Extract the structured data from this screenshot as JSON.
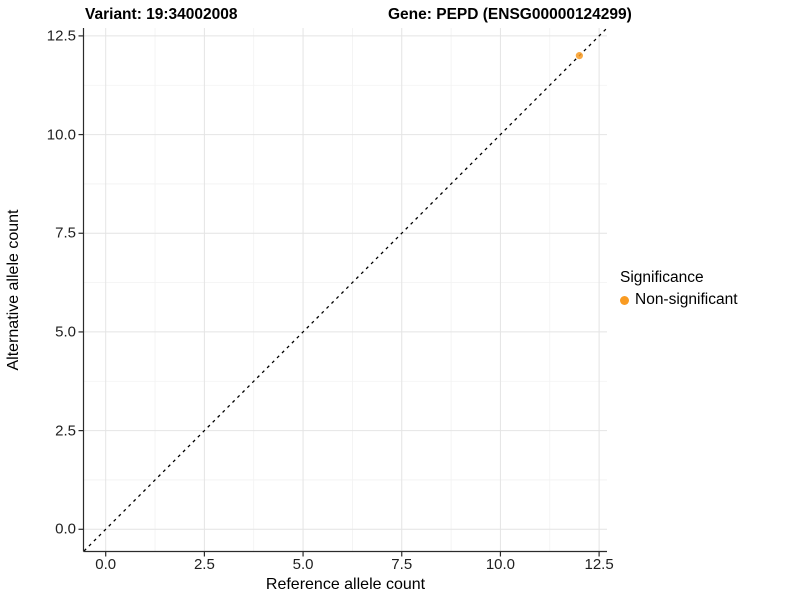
{
  "figure": {
    "title_left": "Variant: 19:34002008",
    "title_right": "Gene: PEPD (ENSG00000124299)"
  },
  "chart_data": {
    "type": "scatter",
    "title": "Variant: 19:34002008   Gene: PEPD (ENSG00000124299)",
    "xlabel": "Reference allele count",
    "ylabel": "Alternative allele count",
    "xlim": [
      -0.55,
      12.7
    ],
    "ylim": [
      -0.55,
      12.7
    ],
    "x_ticks": [
      0,
      2.5,
      5,
      7.5,
      10,
      12.5
    ],
    "x_tick_labels": [
      "0.0",
      "2.5",
      "5.0",
      "7.5",
      "10.0",
      "12.5"
    ],
    "y_ticks": [
      0,
      2.5,
      5,
      7.5,
      10,
      12.5
    ],
    "y_tick_labels": [
      "0.0",
      "2.5",
      "5.0",
      "7.5",
      "10.0",
      "12.5"
    ],
    "grid": "major+minor",
    "reference_line": {
      "type": "identity y=x",
      "style": "dashed",
      "color": "#000000"
    },
    "series": [
      {
        "name": "Non-significant",
        "color": "#F99B22",
        "points": [
          {
            "x": 12,
            "y": 12
          }
        ]
      }
    ],
    "legend": {
      "title": "Significance",
      "position": "right",
      "entries": [
        {
          "label": "Non-significant",
          "color": "#F99B22",
          "marker": "circle"
        }
      ]
    },
    "colors": {
      "background": "#ffffff",
      "panel_background": "#ffffff",
      "major_grid": "#e4e4e4",
      "minor_grid": "#f2f2f2",
      "axis_line": "#2b2b2b",
      "tick_text": "#1f1f1f",
      "point_orange": "#F99B22"
    }
  }
}
